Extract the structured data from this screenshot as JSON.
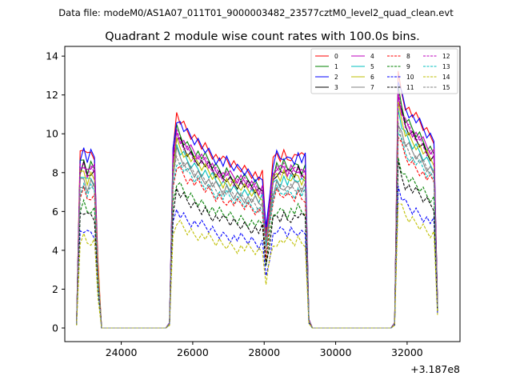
{
  "header": {
    "data_file": "Data file: modeM0/AS1A07_011T01_9000003482_23577cztM0_level2_quad_clean.evt"
  },
  "chart_data": {
    "type": "line",
    "title": "Quadrant 2 module wise count rates with 100.0s bins.",
    "xlabel": "",
    "ylabel": "",
    "offset_label": "+3.187e8",
    "xlim": [
      22420,
      33480
    ],
    "ylim": [
      -0.7,
      14.5
    ],
    "xticks": [
      24000,
      26000,
      28000,
      30000,
      32000
    ],
    "xtick_labels": [
      "24000",
      "26000",
      "28000",
      "30000",
      "32000"
    ],
    "yticks": [
      0,
      2,
      4,
      6,
      8,
      10,
      12,
      14
    ],
    "ytick_labels": [
      "0",
      "2",
      "4",
      "6",
      "8",
      "10",
      "12",
      "14"
    ],
    "legend_location": "upper-right",
    "legend": [
      "0",
      "1",
      "2",
      "3",
      "4",
      "5",
      "6",
      "7",
      "8",
      "9",
      "10",
      "11",
      "12",
      "13",
      "14",
      "15"
    ],
    "series": [
      {
        "name": "0",
        "color": "#ff0000",
        "dash": "solid",
        "level": 9.0
      },
      {
        "name": "1",
        "color": "#008000",
        "dash": "solid",
        "level": 8.4
      },
      {
        "name": "2",
        "color": "#0000ff",
        "dash": "solid",
        "level": 8.9
      },
      {
        "name": "3",
        "color": "#000000",
        "dash": "solid",
        "level": 8.1
      },
      {
        "name": "4",
        "color": "#bf00bf",
        "dash": "solid",
        "level": 8.3
      },
      {
        "name": "5",
        "color": "#00bfbf",
        "dash": "solid",
        "level": 7.7
      },
      {
        "name": "6",
        "color": "#bfbf00",
        "dash": "solid",
        "level": 7.9
      },
      {
        "name": "7",
        "color": "#808080",
        "dash": "solid",
        "level": 7.4
      },
      {
        "name": "8",
        "color": "#ff0000",
        "dash": "dashed",
        "level": 6.9
      },
      {
        "name": "9",
        "color": "#008000",
        "dash": "dashed",
        "level": 6.1
      },
      {
        "name": "10",
        "color": "#0000ff",
        "dash": "dashed",
        "level": 5.0
      },
      {
        "name": "11",
        "color": "#000000",
        "dash": "dashed",
        "level": 5.8
      },
      {
        "name": "12",
        "color": "#bf00bf",
        "dash": "dashed",
        "level": 8.2
      },
      {
        "name": "13",
        "color": "#00bfbf",
        "dash": "dashed",
        "level": 7.1
      },
      {
        "name": "14",
        "color": "#bfbf00",
        "dash": "dashed",
        "level": 4.5
      },
      {
        "name": "15",
        "color": "#808080",
        "dash": "dashed",
        "level": 7.3
      }
    ],
    "profile": {
      "x": [
        22750,
        22850,
        22950,
        23050,
        23150,
        23250,
        23350,
        23450,
        23550,
        25250,
        25350,
        25450,
        25550,
        25650,
        25750,
        25850,
        25950,
        26050,
        26150,
        26250,
        26350,
        26450,
        26550,
        26650,
        26750,
        26850,
        26950,
        27050,
        27150,
        27250,
        27350,
        27450,
        27550,
        27650,
        27750,
        27850,
        27950,
        28050,
        28150,
        28250,
        28350,
        28450,
        28550,
        28650,
        28750,
        28850,
        28950,
        29050,
        29150,
        29250,
        29350,
        31550,
        31650,
        31750,
        31850,
        31950,
        32050,
        32150,
        32250,
        32350,
        32450,
        32550,
        32650,
        32750,
        32850
      ],
      "factor": [
        0.03,
        1.0,
        1.03,
        0.97,
        1.0,
        0.98,
        0.35,
        0.0,
        0.0,
        0.0,
        0.03,
        1.05,
        1.22,
        1.18,
        1.15,
        1.12,
        1.1,
        1.08,
        1.07,
        1.05,
        1.04,
        1.02,
        1.0,
        0.98,
        0.97,
        0.95,
        0.96,
        0.94,
        0.93,
        0.92,
        0.92,
        0.91,
        0.9,
        0.89,
        0.88,
        0.86,
        0.87,
        0.55,
        0.75,
        0.95,
        1.0,
        0.98,
        1.0,
        0.97,
        0.99,
        0.98,
        1.0,
        0.97,
        0.98,
        0.05,
        0.0,
        0.0,
        0.03,
        1.45,
        1.35,
        1.28,
        1.25,
        1.22,
        1.2,
        1.18,
        1.15,
        1.12,
        1.1,
        1.08,
        0.15
      ]
    }
  }
}
